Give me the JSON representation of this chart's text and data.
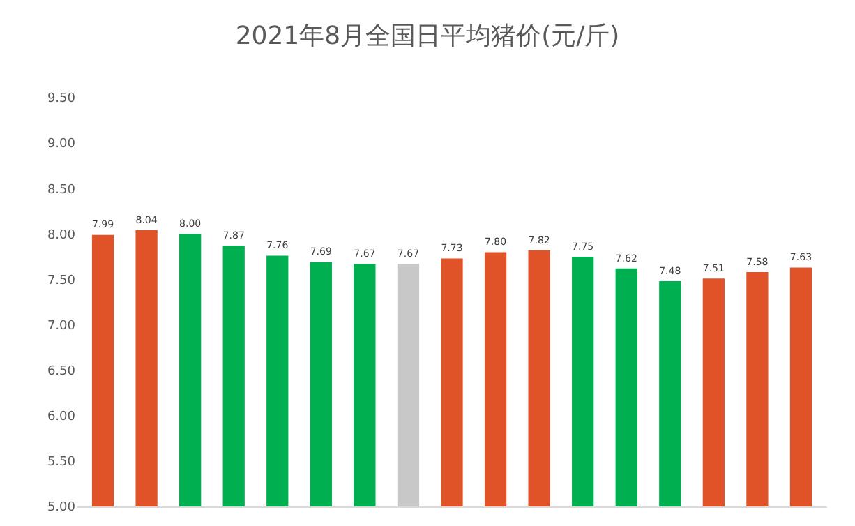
{
  "chart_data": {
    "type": "bar",
    "title": "2021年8月全国日平均猪价(元/斤)",
    "categories": [
      null,
      null,
      null,
      null,
      null,
      null,
      null,
      null,
      null,
      null,
      null,
      null,
      null,
      null,
      null,
      null,
      null
    ],
    "values": [
      7.99,
      8.04,
      8.0,
      7.87,
      7.76,
      7.69,
      7.67,
      7.67,
      7.73,
      7.8,
      7.82,
      7.75,
      7.62,
      7.48,
      7.51,
      7.58,
      7.63
    ],
    "value_labels": [
      "7.99",
      "8.04",
      "8.00",
      "7.87",
      "7.76",
      "7.69",
      "7.67",
      "7.67",
      "7.73",
      "7.80",
      "7.82",
      "7.75",
      "7.62",
      "7.48",
      "7.51",
      "7.58",
      "7.63"
    ],
    "colors": [
      "#e05328",
      "#e05328",
      "#00b050",
      "#00b050",
      "#00b050",
      "#00b050",
      "#00b050",
      "#c8c8c8",
      "#e05328",
      "#e05328",
      "#e05328",
      "#00b050",
      "#00b050",
      "#00b050",
      "#e05328",
      "#e05328",
      "#e05328"
    ],
    "ylim": [
      5,
      9.5
    ],
    "yticks": [
      {
        "value": 5,
        "label": "5.00"
      },
      {
        "value": 5.5,
        "label": "5.50"
      },
      {
        "value": 6,
        "label": "6.00"
      },
      {
        "value": 6.5,
        "label": "6.50"
      },
      {
        "value": 7,
        "label": "7.00"
      },
      {
        "value": 7.5,
        "label": "7.50"
      },
      {
        "value": 8,
        "label": "8.00"
      },
      {
        "value": 8.5,
        "label": "8.50"
      },
      {
        "value": 9,
        "label": "9.00"
      },
      {
        "value": 9.5,
        "label": "9.50"
      }
    ],
    "grid": false,
    "legend": false
  }
}
